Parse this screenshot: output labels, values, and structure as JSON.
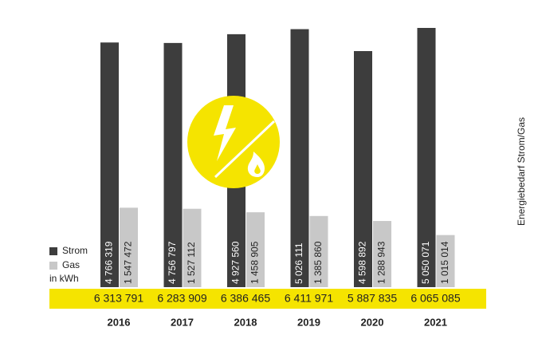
{
  "chart_data": {
    "type": "bar",
    "title": "Energiebedarf Strom/Gas",
    "unit_label": "in kWh",
    "band_color": "#f5e400",
    "categories": [
      "2016",
      "2017",
      "2018",
      "2019",
      "2020",
      "2021"
    ],
    "series": [
      {
        "name": "Strom",
        "color": "#3d3d3d",
        "values": [
          4766319,
          4756797,
          4927560,
          5026111,
          4598892,
          5050071
        ],
        "value_labels": [
          "4 766 319",
          "4 756 797",
          "4 927 560",
          "5 026 111",
          "4 598 892",
          "5 050 071"
        ]
      },
      {
        "name": "Gas",
        "color": "#c8c8c8",
        "values": [
          1547472,
          1527112,
          1458905,
          1385860,
          1288943,
          1015014
        ],
        "value_labels": [
          "1 547 472",
          "1 527 112",
          "1 458 905",
          "1 385 860",
          "1 288 943",
          "1 015 014"
        ]
      }
    ],
    "totals": {
      "values": [
        6313791,
        6283909,
        6386465,
        6411971,
        5887835,
        6065085
      ],
      "value_labels": [
        "6 313 791",
        "6 283 909",
        "6 386 465",
        "6 411 971",
        "5 887 835",
        "6 065 085"
      ]
    }
  }
}
